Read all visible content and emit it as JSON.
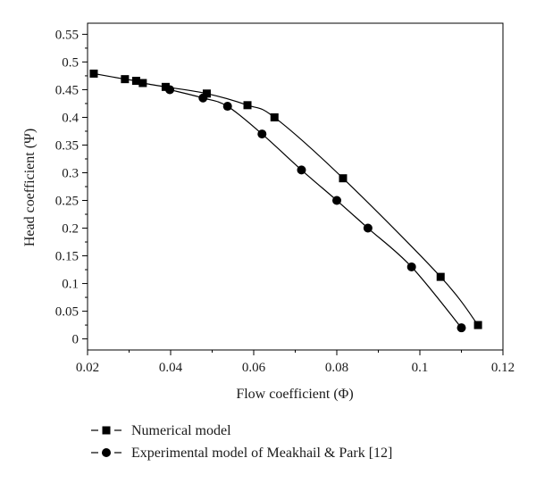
{
  "chart_data": {
    "type": "line",
    "title": "",
    "xlabel": "Flow coefficient (Φ)",
    "ylabel": "Head coefficient (Ψ)",
    "xlim": [
      0.02,
      0.12
    ],
    "ylim": [
      -0.02,
      0.57
    ],
    "xticks": [
      0.02,
      0.04,
      0.06,
      0.08,
      0.1,
      0.12
    ],
    "xtick_labels": [
      "0.02",
      "0.04",
      "0.06",
      "0.08",
      "0.1",
      "0.12"
    ],
    "yticks": [
      0,
      0.05,
      0.1,
      0.15,
      0.2,
      0.25,
      0.3,
      0.35,
      0.4,
      0.45,
      0.5,
      0.55
    ],
    "ytick_labels": [
      "0",
      "0.05",
      "0.1",
      "0.15",
      "0.2",
      "0.25",
      "0.3",
      "0.35",
      "0.4",
      "0.45",
      "0.5",
      "0.55"
    ],
    "grid": false,
    "legend_position": "bottom-left, below plot",
    "series": [
      {
        "name": "Numerical model",
        "marker": "square",
        "color": "#000000",
        "x": [
          0.0215,
          0.029,
          0.0317,
          0.0333,
          0.0388,
          0.0487,
          0.0585,
          0.065,
          0.0815,
          0.105,
          0.114
        ],
        "y": [
          0.479,
          0.469,
          0.466,
          0.462,
          0.455,
          0.443,
          0.422,
          0.4,
          0.29,
          0.112,
          0.025
        ]
      },
      {
        "name": "Experimental model of Meakhail & Park [12]",
        "marker": "circle",
        "color": "#000000",
        "x": [
          0.0398,
          0.0478,
          0.0537,
          0.062,
          0.0715,
          0.08,
          0.0875,
          0.098,
          0.11
        ],
        "y": [
          0.45,
          0.435,
          0.42,
          0.37,
          0.305,
          0.25,
          0.2,
          0.13,
          0.02
        ]
      }
    ]
  }
}
